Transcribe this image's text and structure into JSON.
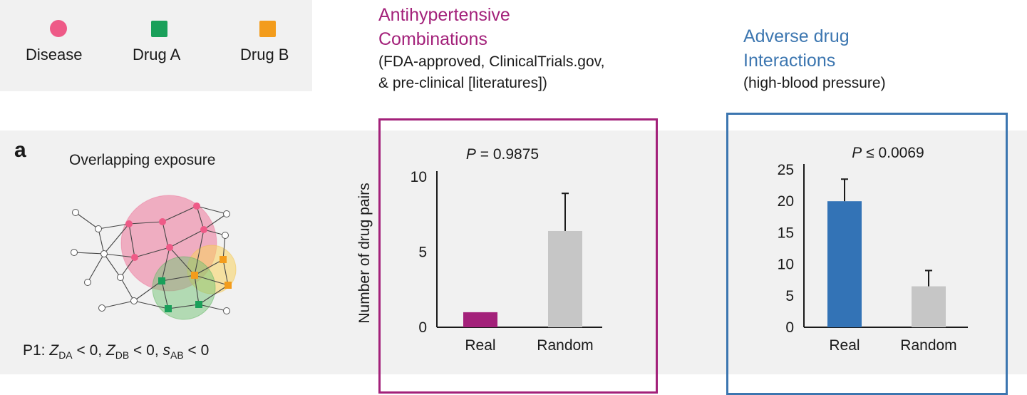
{
  "legend": {
    "items": [
      {
        "label": "Disease",
        "shape": "circle",
        "color": "#ee5a87"
      },
      {
        "label": "Drug A",
        "shape": "square",
        "color": "#1aa05a"
      },
      {
        "label": "Drug B",
        "shape": "square",
        "color": "#f39c1c"
      }
    ]
  },
  "headers": {
    "antihypertensive": {
      "title_line1": "Antihypertensive",
      "title_line2": "Combinations",
      "sub_line1": "(FDA-approved, ClinicalTrials.gov,",
      "sub_line2": "& pre-clinical [literatures])"
    },
    "adverse": {
      "title_line1": "Adverse drug",
      "title_line2": "Interactions",
      "sub_line1": "(high-blood pressure)"
    }
  },
  "panel": {
    "letter": "a",
    "title": "Overlapping exposure",
    "formula": {
      "prefix": "P1: ",
      "z1": "Z",
      "z1_sub": "DA",
      "z1_rest": " < 0, ",
      "z2": "Z",
      "z2_sub": "DB",
      "z2_rest": " < 0, ",
      "s": "s",
      "s_sub": "AB",
      "s_rest": " < 0"
    }
  },
  "colors": {
    "accent_magenta": "#a3217a",
    "accent_blue": "#3c76b0",
    "random_gray": "#c6c6c6",
    "disease_pink": "#ee5a87",
    "drug_a_green": "#1aa05a",
    "drug_b_orange": "#f39c1c"
  },
  "chart_data": [
    {
      "type": "bar",
      "title_p": "P",
      "title_rest": " = 0.9875",
      "ylabel": "Number of drug pairs",
      "categories": [
        "Real",
        "Random"
      ],
      "values": [
        1,
        6.4
      ],
      "errors": [
        0,
        2.5
      ],
      "colors": [
        "#a3217a",
        "#c6c6c6"
      ],
      "ylim": [
        0,
        10
      ],
      "yticks": [
        0,
        5,
        10
      ]
    },
    {
      "type": "bar",
      "title_p": "P",
      "title_rest": " ≤ 0.0069",
      "ylabel": "",
      "categories": [
        "Real",
        "Random"
      ],
      "values": [
        20,
        6.5
      ],
      "errors": [
        3.5,
        2.5
      ],
      "colors": [
        "#3373b6",
        "#c6c6c6"
      ],
      "ylim": [
        0,
        25
      ],
      "yticks": [
        0,
        5,
        10,
        15,
        20,
        25
      ]
    }
  ]
}
